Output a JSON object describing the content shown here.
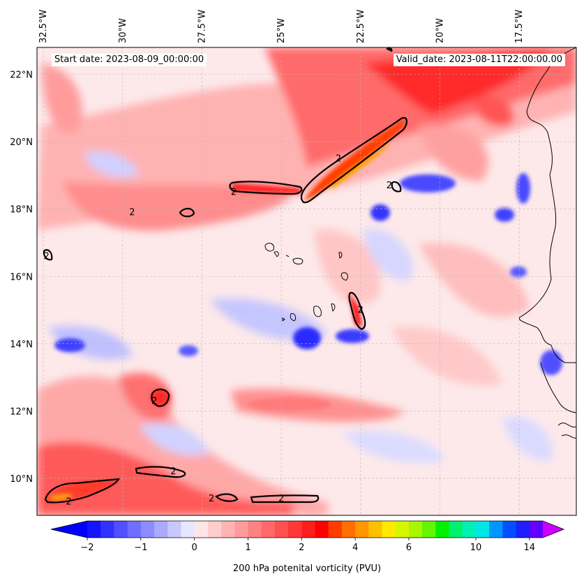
{
  "map": {
    "start_date": "Start date: 2023-08-09_00:00:00",
    "valid_date": "Valid_date: 2023-08-11T22:00:00.00",
    "extent": {
      "lon": [
        -32.7,
        -15.7
      ],
      "lat": [
        8.9,
        22.8
      ]
    },
    "lon_ticks": [
      {
        "value": -32.5,
        "label": "32.5°W"
      },
      {
        "value": -30,
        "label": "30°W"
      },
      {
        "value": -27.5,
        "label": "27.5°W"
      },
      {
        "value": -25,
        "label": "25°W"
      },
      {
        "value": -22.5,
        "label": "22.5°W"
      },
      {
        "value": -20,
        "label": "20°W"
      },
      {
        "value": -17.5,
        "label": "17.5°W"
      }
    ],
    "lat_ticks": [
      {
        "value": 22,
        "label": "22°N"
      },
      {
        "value": 20,
        "label": "20°N"
      },
      {
        "value": 18,
        "label": "18°N"
      },
      {
        "value": 16,
        "label": "16°N"
      },
      {
        "value": 14,
        "label": "14°N"
      },
      {
        "value": 12,
        "label": "12°N"
      },
      {
        "value": 10,
        "label": "10°N"
      }
    ],
    "contour_level_label": "2",
    "contours": [
      {
        "lon": -23.2,
        "lat": 19.5
      },
      {
        "lon": -26.5,
        "lat": 18.5
      },
      {
        "lon": -21.6,
        "lat": 18.7
      },
      {
        "lon": -29.7,
        "lat": 17.9
      },
      {
        "lon": -32.4,
        "lat": 16.6
      },
      {
        "lon": -22.5,
        "lat": 15.0
      },
      {
        "lon": -29.0,
        "lat": 12.3
      },
      {
        "lon": -28.4,
        "lat": 10.2
      },
      {
        "lon": -31.7,
        "lat": 9.3
      },
      {
        "lon": -27.2,
        "lat": 9.4
      },
      {
        "lon": -25.0,
        "lat": 9.4
      }
    ]
  },
  "colorbar": {
    "title": "200 hPa potenital vorticity (PVU)",
    "levels": [
      -2,
      -1.75,
      -1.5,
      -1.25,
      -1,
      -0.75,
      -0.5,
      -0.25,
      0,
      0.25,
      0.5,
      0.75,
      1,
      1.25,
      1.5,
      1.75,
      2,
      2.5,
      3,
      3.5,
      4,
      4.5,
      5,
      5.5,
      6,
      6.5,
      7,
      8,
      9,
      10,
      11,
      12,
      13,
      14,
      15
    ],
    "colors": [
      "#1414ff",
      "#3232ff",
      "#5050ff",
      "#6e6eff",
      "#8c8cff",
      "#aaaaff",
      "#c8c8ff",
      "#e6e6ff",
      "#ffe6e6",
      "#ffcdcd",
      "#ffb4b4",
      "#ff9b9b",
      "#ff8282",
      "#ff6969",
      "#ff5050",
      "#ff3737",
      "#ff1e1e",
      "#ff0000",
      "#ff3c00",
      "#ff6e00",
      "#ff9600",
      "#ffc000",
      "#ffea00",
      "#d8f500",
      "#aaf500",
      "#64f500",
      "#00f000",
      "#00f070",
      "#00f0b4",
      "#00e6e6",
      "#0096ff",
      "#0050ff",
      "#1e1eff",
      "#6400ff"
    ],
    "under_color": "#0000ff",
    "over_color": "#cc00ff",
    "ticks": [
      {
        "value": -2,
        "label": "−2"
      },
      {
        "value": -1,
        "label": "−1"
      },
      {
        "value": 0,
        "label": "0"
      },
      {
        "value": 1,
        "label": "1"
      },
      {
        "value": 2,
        "label": "2"
      },
      {
        "value": 4,
        "label": "4"
      },
      {
        "value": 6,
        "label": "6"
      },
      {
        "value": 10,
        "label": "10"
      },
      {
        "value": 14,
        "label": "14"
      }
    ]
  }
}
